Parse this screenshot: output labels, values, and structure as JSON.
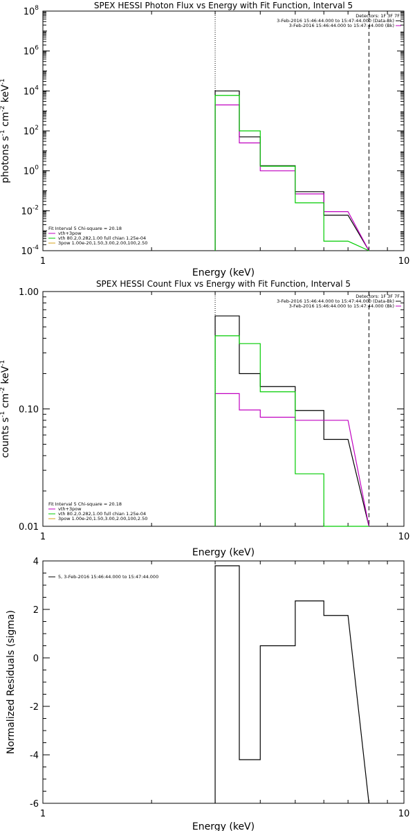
{
  "colors": {
    "observed": "#000000",
    "fit_total": "#c000c0",
    "thermal": "#00cc00",
    "power_law": "#d4a017",
    "background": "#ffffff"
  },
  "chart_data": [
    {
      "id": "photon",
      "type": "line",
      "title": "SPEX HESSI Photon Flux vs Energy with Fit Function, Interval 5",
      "xlabel": "Energy (keV)",
      "ylabel_parts": [
        "photons s",
        "-1",
        " cm",
        "-2",
        " keV",
        "-1"
      ],
      "xscale": "log",
      "yscale": "log",
      "xlim": [
        1,
        10
      ],
      "ylim": [
        0.0001,
        100000000
      ],
      "xticks": [
        {
          "v": 1,
          "label": "1"
        },
        {
          "v": 10,
          "label": "10"
        }
      ],
      "yticks": [
        {
          "v": 0.0001,
          "base": "10",
          "exp": "-4"
        },
        {
          "v": 0.01,
          "base": "10",
          "exp": "-2"
        },
        {
          "v": 1,
          "base": "10",
          "exp": "0"
        },
        {
          "v": 100,
          "base": "10",
          "exp": "2"
        },
        {
          "v": 10000,
          "base": "10",
          "exp": "4"
        },
        {
          "v": 1000000,
          "base": "10",
          "exp": "6"
        },
        {
          "v": 100000000,
          "base": "10",
          "exp": "8"
        }
      ],
      "edges": [
        3.0,
        3.5,
        4.0,
        5.0,
        6.0,
        7.0,
        8.0
      ],
      "series": [
        {
          "key": "observed",
          "color": "#000000",
          "values": [
            10000,
            50,
            1.8,
            0.09,
            0.006
          ]
        },
        {
          "key": "fit_total",
          "color": "#c000c0",
          "values": [
            2000,
            25,
            1.0,
            0.07,
            0.009
          ]
        },
        {
          "key": "thermal",
          "color": "#00cc00",
          "values": [
            6000,
            100,
            1.7,
            0.025,
            0.0003
          ]
        }
      ],
      "vlines": [
        {
          "x": 3.0,
          "style": "dotted"
        },
        {
          "x": 8.0,
          "style": "dashed"
        }
      ],
      "legend_right": [
        {
          "text": "Detectors: 1F 3F 7F",
          "color": null
        },
        {
          "text": "3-Feb-2016 15:46:44.000 to 15:47:44.000 (Data-Bk)",
          "color": "#000000"
        },
        {
          "text": "3-Feb-2016 15:46:44.000 to 15:47:44.000 (Bk)",
          "color": "#c000c0"
        }
      ],
      "legend_left": [
        {
          "text": "Fit Interval 5   Chi-square = 20.18",
          "color": null
        },
        {
          "text": "vth+3pow",
          "color": "#c000c0"
        },
        {
          "text": "vth 80.2,0.282,1.00  full chian 1.25e-04",
          "color": "#00cc00"
        },
        {
          "text": "3pow 1.00e-20,1.50,3.00,2.00,100,2.50",
          "color": "#d4a017"
        }
      ]
    },
    {
      "id": "count",
      "type": "line",
      "title": "SPEX HESSI Count Flux vs Energy with Fit Function, Interval 5",
      "xlabel": "Energy (keV)",
      "ylabel_parts": [
        "counts s",
        "-1",
        " cm",
        "-2",
        " keV",
        "-1"
      ],
      "xscale": "log",
      "yscale": "log",
      "xlim": [
        1,
        10
      ],
      "ylim": [
        0.01,
        1.0
      ],
      "xticks": [
        {
          "v": 1,
          "label": "1"
        },
        {
          "v": 10,
          "label": "10"
        }
      ],
      "yticks": [
        {
          "v": 0.01,
          "base": "0.01",
          "exp": ""
        },
        {
          "v": 0.1,
          "base": "0.10",
          "exp": ""
        },
        {
          "v": 1.0,
          "base": "1.00",
          "exp": ""
        }
      ],
      "edges": [
        3.0,
        3.5,
        4.0,
        5.0,
        6.0,
        7.0,
        8.0
      ],
      "series": [
        {
          "key": "observed",
          "color": "#000000",
          "values": [
            0.62,
            0.2,
            0.155,
            0.097,
            0.055
          ]
        },
        {
          "key": "fit_total",
          "color": "#c000c0",
          "values": [
            0.135,
            0.098,
            0.085,
            0.08,
            0.08
          ]
        },
        {
          "key": "thermal",
          "color": "#00cc00",
          "values": [
            0.42,
            0.36,
            0.14,
            0.028,
            0.01
          ]
        }
      ],
      "vlines": [
        {
          "x": 3.0,
          "style": "dotted"
        },
        {
          "x": 8.0,
          "style": "dashed"
        }
      ],
      "legend_right": [
        {
          "text": "Detectors: 1F 3F 7F",
          "color": null
        },
        {
          "text": "3-Feb-2016 15:46:44.000 to 15:47:44.000 (Data-Bk)",
          "color": "#000000"
        },
        {
          "text": "3-Feb-2016 15:46:44.000 to 15:47:44.000 (Bk)",
          "color": "#c000c0"
        }
      ],
      "legend_left": [
        {
          "text": "Fit Interval 5   Chi-square = 20.18",
          "color": null
        },
        {
          "text": "vth+3pow",
          "color": "#c000c0"
        },
        {
          "text": "vth 80.2,0.282,1.00  full chian 1.25e-04",
          "color": "#00cc00"
        },
        {
          "text": "3pow 1.00e-20,1.50,3.00,2.00,100,2.50",
          "color": "#d4a017"
        }
      ]
    },
    {
      "id": "resid",
      "type": "line",
      "title": "",
      "xlabel": "Energy (keV)",
      "ylabel_parts": [
        "Normalized Residuals (sigma)"
      ],
      "xscale": "log",
      "yscale": "linear",
      "xlim": [
        1,
        10
      ],
      "ylim": [
        -6,
        4
      ],
      "xticks": [
        {
          "v": 1,
          "label": "1"
        },
        {
          "v": 10,
          "label": "10"
        }
      ],
      "yticks": [
        {
          "v": -6,
          "base": "-6",
          "exp": ""
        },
        {
          "v": -4,
          "base": "-4",
          "exp": ""
        },
        {
          "v": -2,
          "base": "-2",
          "exp": ""
        },
        {
          "v": 0,
          "base": "0",
          "exp": ""
        },
        {
          "v": 2,
          "base": "2",
          "exp": ""
        },
        {
          "v": 4,
          "base": "4",
          "exp": ""
        }
      ],
      "edges": [
        3.0,
        3.5,
        4.0,
        5.0,
        6.0,
        7.0,
        8.0
      ],
      "series": [
        {
          "key": "residuals",
          "color": "#000000",
          "values": [
            3.8,
            -4.2,
            0.5,
            2.35,
            1.75
          ]
        }
      ],
      "vlines": [],
      "legend_right": [],
      "legend_left": [
        {
          "text": "5,  3-Feb-2016 15:46:44.000 to 15:47:44.000",
          "color": "#000000"
        }
      ]
    }
  ]
}
